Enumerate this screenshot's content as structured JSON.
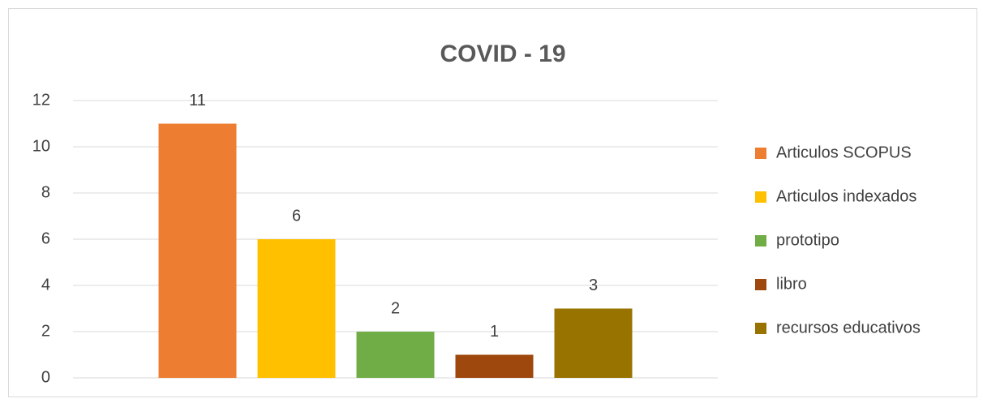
{
  "chart_data": {
    "type": "bar",
    "title": "COVID - 19",
    "categories": [
      null
    ],
    "series": [
      {
        "name": "Articulos SCOPUS",
        "color": "#ED7D31",
        "values": [
          11
        ]
      },
      {
        "name": "Articulos indexados",
        "color": "#FFC000",
        "values": [
          6
        ]
      },
      {
        "name": "prototipo",
        "color": "#70AD47",
        "values": [
          2
        ]
      },
      {
        "name": "libro",
        "color": "#9E480E",
        "values": [
          1
        ]
      },
      {
        "name": "recursos educativos",
        "color": "#997300",
        "values": [
          3
        ]
      }
    ],
    "ylim": [
      0,
      12
    ],
    "yticks": [
      0,
      2,
      4,
      6,
      8,
      10,
      12
    ],
    "grid": true,
    "legend": "right"
  }
}
